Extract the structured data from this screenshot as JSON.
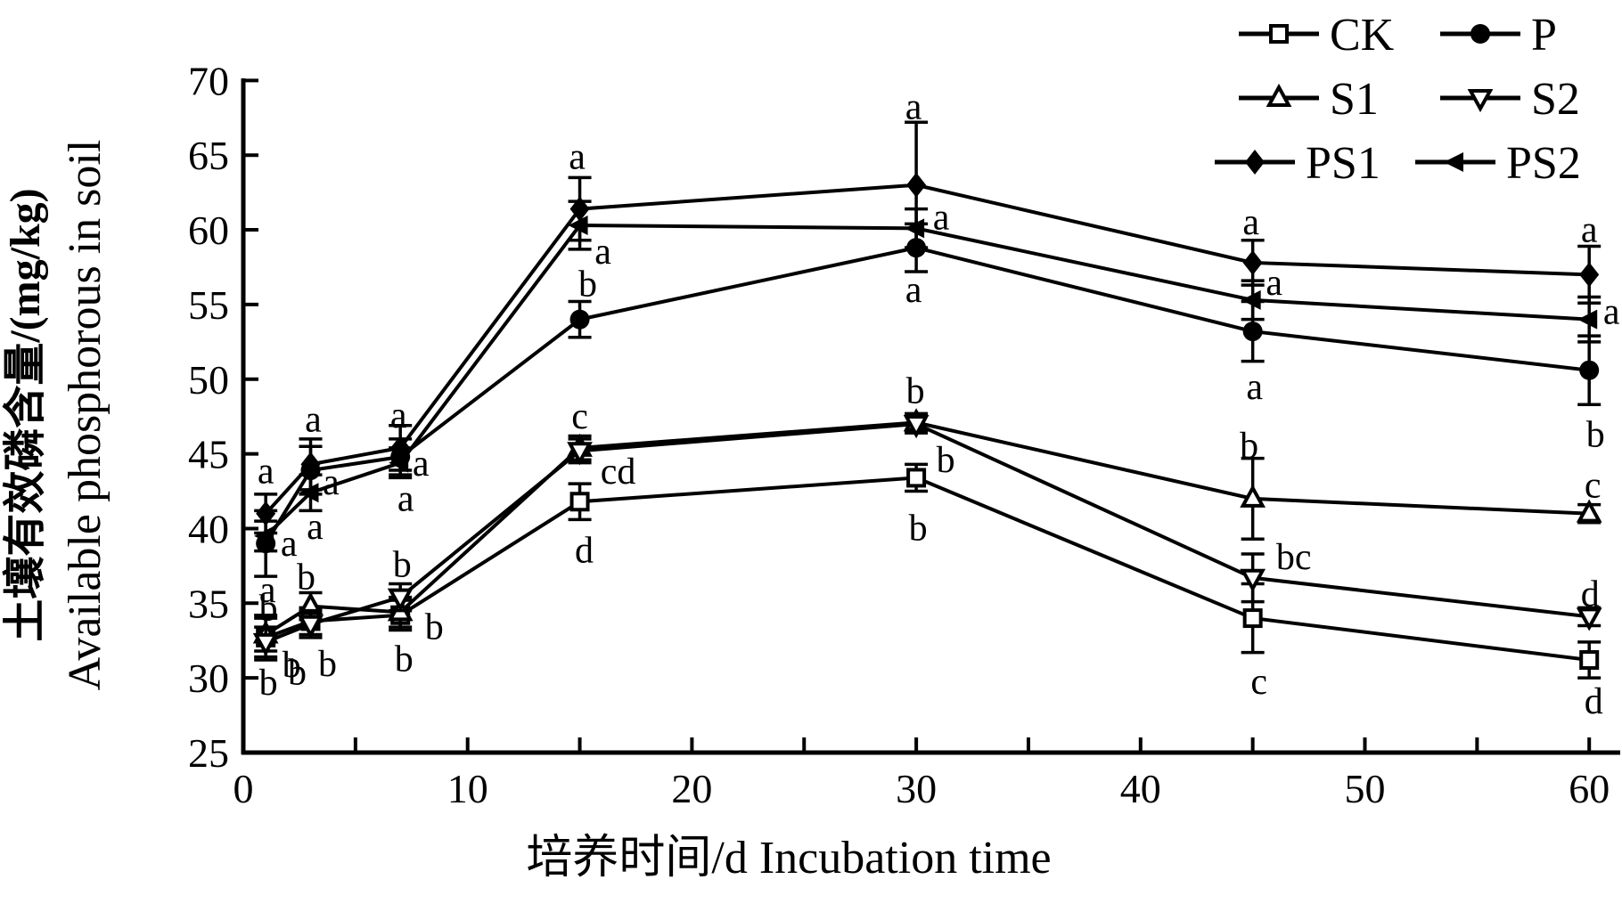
{
  "figure": {
    "background": "#ffffff",
    "ink_color": "#000000",
    "xlabel": "培养时间/d  Incubation time",
    "ylabel_cn": "土壤有效磷含量/(mg/kg)",
    "ylabel_en": "Available phosphorous in soil"
  },
  "chart_data": {
    "type": "line",
    "title": "",
    "xlabel": "培养时间/d  Incubation time",
    "ylabel": "土壤有效磷含量/(mg/kg) Available phosphorous in soil",
    "xlim": [
      0,
      61.5
    ],
    "ylim": [
      25,
      70
    ],
    "xticks_major": [
      0,
      10,
      20,
      30,
      40,
      50,
      60
    ],
    "xticks_minor_step": 5,
    "yticks": [
      25,
      30,
      35,
      40,
      45,
      50,
      55,
      60,
      65,
      70
    ],
    "grid": false,
    "legend_position": "top-right",
    "x": [
      1,
      3,
      7,
      15,
      30,
      45,
      60
    ],
    "series": [
      {
        "name": "CK",
        "marker": "square-open",
        "values": [
          32.7,
          33.8,
          34.2,
          41.8,
          43.4,
          34.0,
          31.2
        ],
        "errors": [
          1.5,
          0.9,
          1.0,
          1.2,
          0.9,
          2.3,
          1.2
        ],
        "letters": [
          "b",
          "b",
          "b",
          "d",
          "b",
          "c",
          "d"
        ],
        "letter_offsets": [
          [
            3,
            50
          ],
          [
            -15,
            57
          ],
          [
            4,
            49
          ],
          [
            5,
            54
          ],
          [
            2,
            56
          ],
          [
            7,
            71
          ],
          [
            5,
            46
          ]
        ]
      },
      {
        "name": "P",
        "marker": "circle-filled",
        "values": [
          39.0,
          43.9,
          44.8,
          54.0,
          58.8,
          53.2,
          50.6
        ],
        "errors": [
          2.2,
          1.6,
          1.2,
          1.2,
          1.6,
          2.0,
          2.3
        ],
        "letters": [
          "a",
          "a",
          "a",
          "b",
          "a",
          "a",
          "b"
        ],
        "letter_offsets": [
          [
            2,
            52
          ],
          [
            23,
            13
          ],
          [
            23,
            7
          ],
          [
            9,
            -40
          ],
          [
            -3,
            47
          ],
          [
            2,
            62
          ],
          [
            7,
            72
          ]
        ]
      },
      {
        "name": "S1",
        "marker": "triangle-up-open",
        "values": [
          32.9,
          34.8,
          34.4,
          45.4,
          47.1,
          42.0,
          41.0
        ],
        "errors": [
          1.1,
          0.9,
          1.0,
          0.8,
          0.6,
          2.7,
          0.6
        ],
        "letters": [
          "b",
          "b",
          "b",
          "c",
          "b",
          "b",
          "c"
        ],
        "letter_offsets": [
          [
            3,
            -30
          ],
          [
            -5,
            -33
          ],
          [
            38,
            16
          ],
          [
            0,
            -36
          ],
          [
            -1,
            -36
          ],
          [
            -4,
            -60
          ],
          [
            4,
            -32
          ]
        ]
      },
      {
        "name": "S2",
        "marker": "triangle-down-open",
        "values": [
          32.4,
          33.6,
          35.4,
          45.2,
          47.0,
          36.7,
          34.1
        ],
        "errors": [
          1.0,
          0.9,
          0.9,
          0.8,
          0.6,
          1.6,
          0.6
        ],
        "letters": [
          "b",
          "b",
          "b",
          "cd",
          "b",
          "bc",
          "d"
        ],
        "letter_offsets": [
          [
            29,
            25
          ],
          [
            19,
            44
          ],
          [
            2,
            -37
          ],
          [
            43,
            23
          ],
          [
            33,
            40
          ],
          [
            46,
            -24
          ],
          [
            1,
            -26
          ]
        ]
      },
      {
        "name": "PS1",
        "marker": "diamond-filled",
        "values": [
          41.0,
          44.3,
          45.4,
          61.4,
          63.0,
          57.8,
          57.0
        ],
        "errors": [
          1.3,
          1.7,
          1.5,
          2.1,
          4.2,
          1.5,
          1.9
        ],
        "letters": [
          "a",
          "a",
          "a",
          "a",
          "a",
          "a",
          "a"
        ],
        "letter_offsets": [
          [
            0,
            -48
          ],
          [
            3,
            -51
          ],
          [
            -2,
            -37
          ],
          [
            -3,
            -59
          ],
          [
            -3,
            -88
          ],
          [
            -2,
            -46
          ],
          [
            0,
            -51
          ]
        ]
      },
      {
        "name": "PS2",
        "marker": "triangle-left-filled",
        "values": [
          39.5,
          42.4,
          44.4,
          60.3,
          60.1,
          55.3,
          54.0
        ],
        "errors": [
          1.0,
          1.2,
          1.0,
          1.6,
          1.3,
          1.3,
          1.5
        ],
        "letters": [
          "a",
          "a",
          "a",
          "a",
          "a",
          "a",
          "a"
        ],
        "letter_offsets": [
          [
            26,
            8
          ],
          [
            5,
            38
          ],
          [
            6,
            40
          ],
          [
            26,
            29
          ],
          [
            28,
            -13
          ],
          [
            24,
            -20
          ],
          [
            25,
            -9
          ]
        ]
      }
    ],
    "legend": {
      "rows": [
        [
          "CK",
          "P"
        ],
        [
          "S1",
          "S2"
        ],
        [
          "PS1",
          "PS2"
        ]
      ]
    }
  }
}
